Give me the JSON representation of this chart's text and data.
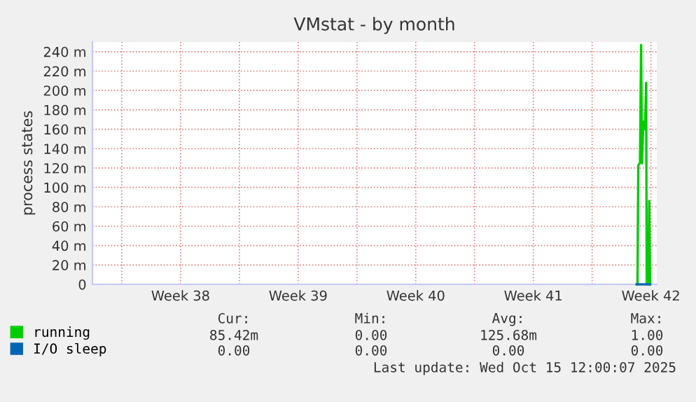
{
  "chart_data": {
    "type": "line",
    "title": "VMstat - by month",
    "ylabel": "process states",
    "xlim": [
      "2025-09-13T06:00",
      "2025-10-16T20:24"
    ],
    "xticks": [
      {
        "value": "2025-09-15",
        "label": null
      },
      {
        "value": "2025-09-18T12:00",
        "label": "Week 38"
      },
      {
        "value": "2025-09-22",
        "label": null
      },
      {
        "value": "2025-09-25T12:00",
        "label": "Week 39"
      },
      {
        "value": "2025-09-29",
        "label": null
      },
      {
        "value": "2025-10-02T12:00",
        "label": "Week 40"
      },
      {
        "value": "2025-10-06",
        "label": null
      },
      {
        "value": "2025-10-09T12:00",
        "label": "Week 41"
      },
      {
        "value": "2025-10-13",
        "label": null
      },
      {
        "value": "2025-10-16T12:00",
        "label": "Week 42"
      }
    ],
    "ylim": [
      0,
      250
    ],
    "yticks": [
      0,
      {
        "value": 20,
        "label": "20 m"
      },
      {
        "value": 40,
        "label": "40 m"
      },
      {
        "value": 60,
        "label": "60 m"
      },
      {
        "value": 80,
        "label": "80 m"
      },
      {
        "value": 100,
        "label": "100 m"
      },
      {
        "value": 120,
        "label": "120 m"
      },
      {
        "value": 140,
        "label": "140 m"
      },
      {
        "value": 160,
        "label": "160 m"
      },
      {
        "value": 180,
        "label": "180 m"
      },
      {
        "value": 200,
        "label": "200 m"
      },
      {
        "value": 220,
        "label": "220 m"
      },
      {
        "value": 240,
        "label": "240 m"
      }
    ],
    "grid": true,
    "legend": "bottom left",
    "series": [
      {
        "name": "running",
        "color": "#00cc00",
        "x": [
          "2025-10-15T16:48",
          "2025-10-15T18:00",
          "2025-10-15T20:24",
          "2025-10-15T22:00",
          "2025-10-15T23:15",
          "2025-10-16T01:12",
          "2025-10-16T03:36",
          "2025-10-16T05:15",
          "2025-10-16T06:00",
          "2025-10-16T08:24",
          "2025-10-16T09:36",
          "2025-10-16T10:48"
        ],
        "values": [
          0,
          123,
          125,
          247,
          125,
          168,
          160,
          208,
          0,
          0,
          86,
          0
        ]
      },
      {
        "name": "I/O sleep",
        "color": "#0066b3",
        "x": [
          "2025-10-15T15:36",
          "2025-10-15T20:24",
          "2025-10-16T01:12",
          "2025-10-16T06:00",
          "2025-10-16T10:48"
        ],
        "values": [
          0,
          0,
          0,
          0,
          0
        ]
      }
    ],
    "annotations": [
      "Cur:",
      "Min:",
      "Avg:",
      "Max:",
      "85.42m",
      "0.00",
      "125.68m",
      "1.00",
      "0.00",
      "0.00",
      "0.00",
      "0.00",
      "Last update: Wed Oct 15 12:00:07 2025"
    ]
  }
}
